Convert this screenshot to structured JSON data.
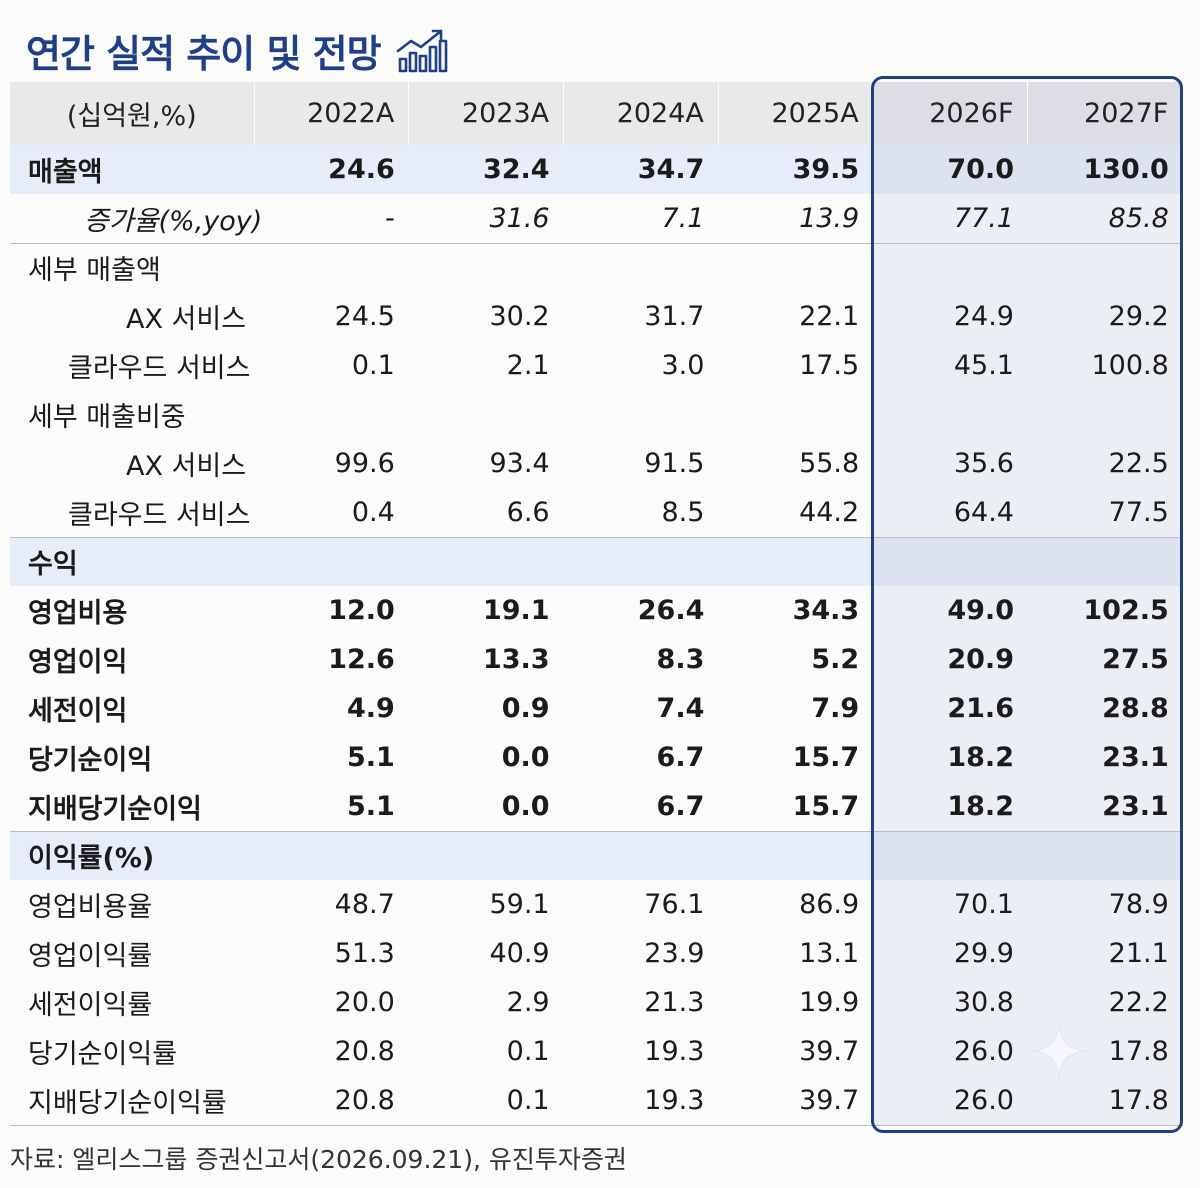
{
  "title": "연간 실적 추이 및 전망",
  "title_icon": "growth-chart-icon",
  "table": {
    "header": [
      "(십억원,%)",
      "2022A",
      "2023A",
      "2024A",
      "2025A",
      "2026F",
      "2027F"
    ],
    "rows": {
      "sales": [
        "매출액",
        "24.6",
        "32.4",
        "34.7",
        "39.5",
        "70.0",
        "130.0"
      ],
      "yoy": [
        "증가율(%,yoy)",
        "-",
        "31.6",
        "7.1",
        "13.9",
        "77.1",
        "85.8"
      ],
      "detail_sales_title": "세부 매출액",
      "ds_ax": [
        "AX 서비스",
        "24.5",
        "30.2",
        "31.7",
        "22.1",
        "24.9",
        "29.2"
      ],
      "ds_cloud": [
        "클라우드 서비스",
        "0.1",
        "2.1",
        "3.0",
        "17.5",
        "45.1",
        "100.8"
      ],
      "detail_ratio_title": "세부 매출비중",
      "dr_ax": [
        "AX 서비스",
        "99.6",
        "93.4",
        "91.5",
        "55.8",
        "35.6",
        "22.5"
      ],
      "dr_cloud": [
        "클라우드 서비스",
        "0.4",
        "6.6",
        "8.5",
        "44.2",
        "64.4",
        "77.5"
      ],
      "profit_title": "수익",
      "opex": [
        "영업비용",
        "12.0",
        "19.1",
        "26.4",
        "34.3",
        "49.0",
        "102.5"
      ],
      "op": [
        "영업이익",
        "12.6",
        "13.3",
        "8.3",
        "5.2",
        "20.9",
        "27.5"
      ],
      "pretax": [
        "세전이익",
        "4.9",
        "0.9",
        "7.4",
        "7.9",
        "21.6",
        "28.8"
      ],
      "net": [
        "당기순이익",
        "5.1",
        "0.0",
        "6.7",
        "15.7",
        "18.2",
        "23.1"
      ],
      "net_parent": [
        "지배당기순이익",
        "5.1",
        "0.0",
        "6.7",
        "15.7",
        "18.2",
        "23.1"
      ],
      "margin_title": "이익률(%)",
      "opex_r": [
        "영업비용율",
        "48.7",
        "59.1",
        "76.1",
        "86.9",
        "70.1",
        "78.9"
      ],
      "op_r": [
        "영업이익률",
        "51.3",
        "40.9",
        "23.9",
        "13.1",
        "29.9",
        "21.1"
      ],
      "pretax_r": [
        "세전이익률",
        "20.0",
        "2.9",
        "21.3",
        "19.9",
        "30.8",
        "22.2"
      ],
      "net_r": [
        "당기순이익률",
        "20.8",
        "0.1",
        "19.3",
        "39.7",
        "26.0",
        "17.8"
      ],
      "net_parent_r": [
        "지배당기순이익률",
        "20.8",
        "0.1",
        "19.3",
        "39.7",
        "26.0",
        "17.8"
      ]
    }
  },
  "source": "자료: 엘리스그룹 증권신고서(2026.09.21), 유진투자증권",
  "colors": {
    "accent": "#1f3f86",
    "header_bg": "#e9e9ea",
    "highlight_bg": "#e7edf8",
    "forecast_bg": "#eceef6"
  }
}
